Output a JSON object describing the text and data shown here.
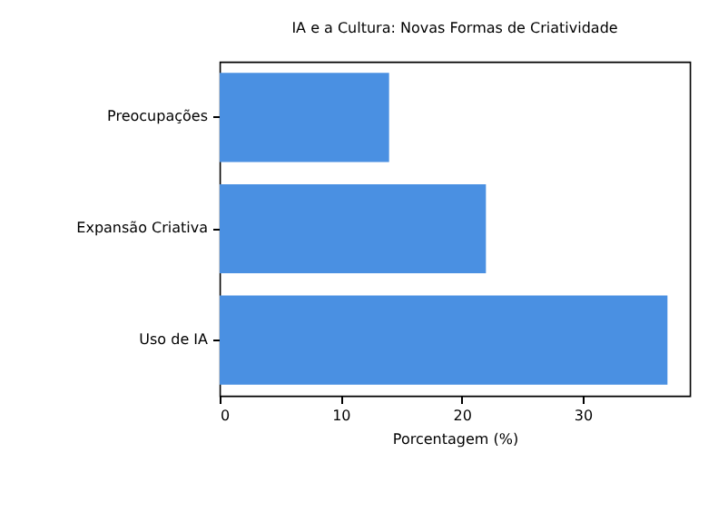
{
  "chart_data": {
    "type": "bar",
    "orientation": "horizontal",
    "title": "IA e a Cultura: Novas Formas de Criatividade",
    "xlabel": "Porcentagem (%)",
    "categories": [
      "Preocupações",
      "Expansão Criativa",
      "Uso de IA"
    ],
    "values": [
      14,
      22,
      37
    ],
    "color": "#4a90e2",
    "xlim": [
      0,
      38.85
    ],
    "xticks": [
      0,
      10,
      20,
      30
    ],
    "grid": false
  }
}
